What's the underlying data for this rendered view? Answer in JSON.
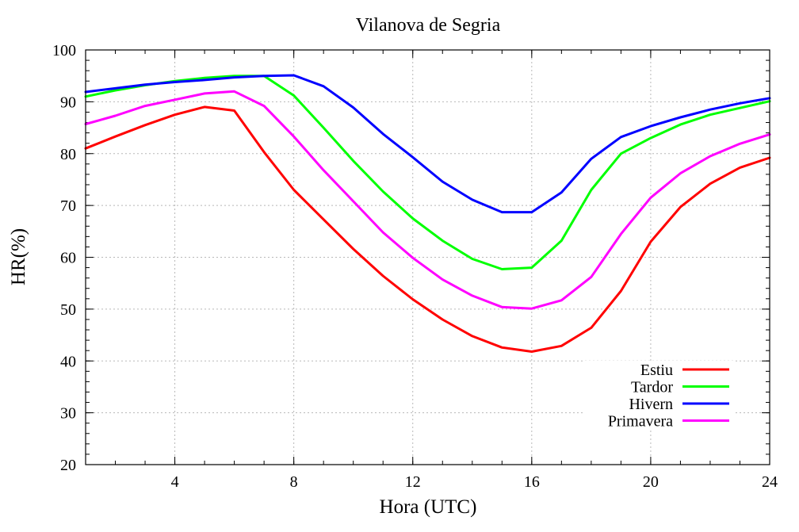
{
  "chart_data": {
    "type": "line",
    "title": "Vilanova de Segria",
    "xlabel": "Hora (UTC)",
    "ylabel": "HR(%)",
    "xlim": [
      1,
      24
    ],
    "ylim": [
      20,
      100
    ],
    "xticks": [
      4,
      8,
      12,
      16,
      20,
      24
    ],
    "yticks": [
      20,
      30,
      40,
      50,
      60,
      70,
      80,
      90,
      100
    ],
    "grid": true,
    "legend_position": "bottom-right",
    "x": [
      1,
      2,
      3,
      4,
      5,
      6,
      7,
      8,
      9,
      10,
      11,
      12,
      13,
      14,
      15,
      16,
      17,
      18,
      19,
      20,
      21,
      22,
      23,
      24
    ],
    "series": [
      {
        "name": "Estiu",
        "color": "#ff0000",
        "values": [
          81.0,
          83.3,
          85.5,
          87.5,
          89.0,
          88.3,
          80.3,
          73.0,
          67.3,
          61.6,
          56.4,
          51.9,
          48.0,
          44.8,
          42.6,
          41.8,
          42.9,
          46.4,
          53.5,
          63.0,
          69.7,
          74.2,
          77.3,
          79.2
        ]
      },
      {
        "name": "Tardor",
        "color": "#00ff00",
        "values": [
          91.0,
          92.2,
          93.2,
          94.0,
          94.6,
          95.0,
          95.0,
          91.2,
          85.0,
          78.6,
          72.7,
          67.5,
          63.2,
          59.7,
          57.7,
          58.0,
          63.2,
          73.0,
          80.0,
          83.0,
          85.6,
          87.5,
          88.8,
          90.1
        ]
      },
      {
        "name": "Hivern",
        "color": "#0000ff",
        "values": [
          91.9,
          92.6,
          93.3,
          93.8,
          94.2,
          94.7,
          95.0,
          95.1,
          93.0,
          88.9,
          83.8,
          79.3,
          74.6,
          71.1,
          68.7,
          68.7,
          72.5,
          79.0,
          83.2,
          85.3,
          87.0,
          88.5,
          89.7,
          90.7
        ]
      },
      {
        "name": "Primavera",
        "color": "#ff00ff",
        "values": [
          85.7,
          87.3,
          89.2,
          90.4,
          91.6,
          92.0,
          89.2,
          83.3,
          76.8,
          70.8,
          64.8,
          59.9,
          55.7,
          52.6,
          50.4,
          50.1,
          51.7,
          56.2,
          64.5,
          71.5,
          76.2,
          79.5,
          81.9,
          83.7
        ]
      }
    ]
  }
}
